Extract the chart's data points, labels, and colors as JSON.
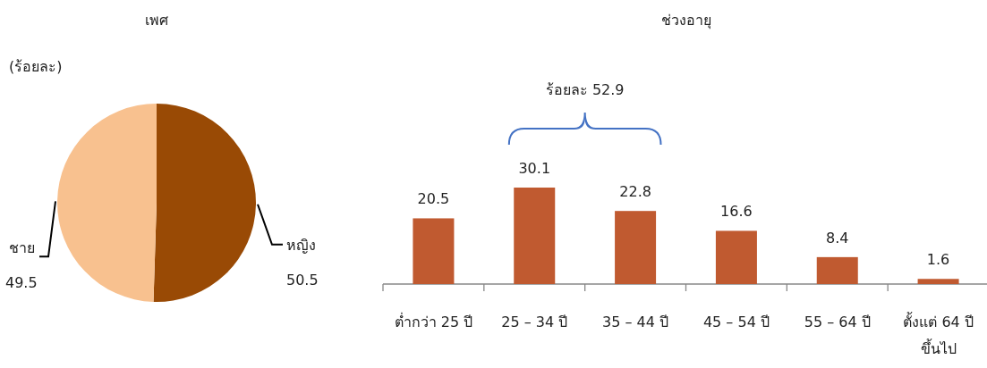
{
  "chart_data": [
    {
      "type": "pie",
      "title": "เพศ",
      "subtitle": "(ร้อยละ)",
      "categories": [
        "ชาย",
        "หญิง"
      ],
      "values": [
        49.5,
        50.5
      ],
      "colors": [
        "#f8c18f",
        "#994a05"
      ],
      "data_labels": true
    },
    {
      "type": "bar",
      "title": "ช่วงอายุ",
      "categories": [
        "ต่ำกว่า 25 ปี",
        "25 – 34 ปี",
        "35 – 44 ปี",
        "45 – 54 ปี",
        "55 – 64 ปี",
        "ตั้งแต่ 64 ปี ขึ้นไป"
      ],
      "values": [
        20.5,
        30.1,
        22.8,
        16.6,
        8.4,
        1.6
      ],
      "color": "#c05a30",
      "data_labels": true,
      "annotations": [
        "ร้อยละ 52.9"
      ]
    }
  ]
}
